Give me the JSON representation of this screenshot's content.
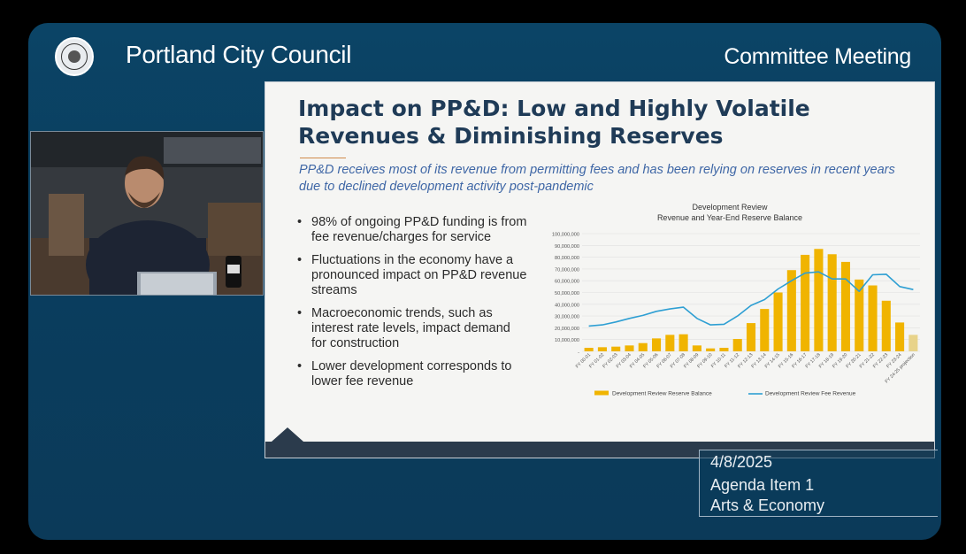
{
  "header": {
    "council_title": "Portland City Council",
    "meeting_type": "Committee Meeting"
  },
  "slide": {
    "title": "Impact on PP&D: Low and Highly Volatile Revenues & Diminishing Reserves",
    "subtitle": "PP&D receives most of its revenue from permitting fees and has been relying on reserves in recent years due to declined development activity post-pandemic",
    "bullets": [
      "98% of ongoing PP&D funding is from fee revenue/charges for service",
      "Fluctuations in the economy have a pronounced impact on PP&D revenue streams",
      "Macroeconomic trends, such as interest rate levels, impact demand for construction",
      "Lower development corresponds to lower fee revenue"
    ]
  },
  "chart_data": {
    "type": "bar",
    "title": "Development Review",
    "subtitle": "Revenue and Year-End Reserve Balance",
    "categories": [
      "FY 00-01",
      "FY 01-02",
      "FY 02-03",
      "FY 03-04",
      "FY 04-05",
      "FY 05-06",
      "FY 06-07",
      "FY 07-08",
      "FY 08-09",
      "FY 09-10",
      "FY 10-11",
      "FY 11-12",
      "FY 12-13",
      "FY 13-14",
      "FY 14-15",
      "FY 15-16",
      "FY 16-17",
      "FY 17-18",
      "FY 18-19",
      "FY 19-20",
      "FY 20-21",
      "FY 21-22",
      "FY 22-23",
      "FY 23-24",
      "FY 24-25 projection"
    ],
    "ylim": [
      0,
      100000000
    ],
    "yticks": [
      "100,000,000",
      "90,000,000",
      "80,000,000",
      "70,000,000",
      "60,000,000",
      "50,000,000",
      "40,000,000",
      "30,000,000",
      "20,000,000",
      "10,000,000",
      "-"
    ],
    "series": [
      {
        "name": "Development Review Reserve Balance",
        "type": "bar",
        "color": "#f0b400",
        "projection_color": "#e8d38a",
        "values": [
          3000000,
          3500000,
          4000000,
          5000000,
          7000000,
          11000000,
          14000000,
          14500000,
          5000000,
          2500000,
          3000000,
          10500000,
          24000000,
          36000000,
          50000000,
          69000000,
          82000000,
          87000000,
          82500000,
          76000000,
          61000000,
          56000000,
          43000000,
          24500000,
          14000000
        ]
      },
      {
        "name": "Development Review Fee Revenue",
        "type": "line",
        "color": "#2e9fd3",
        "values": [
          21500000,
          22500000,
          25000000,
          28000000,
          30500000,
          34000000,
          36000000,
          37500000,
          28000000,
          22500000,
          23000000,
          30000000,
          39000000,
          44000000,
          53000000,
          60000000,
          66500000,
          67500000,
          61500000,
          61500000,
          51000000,
          65000000,
          65500000,
          55000000,
          52500000
        ]
      }
    ]
  }
}
